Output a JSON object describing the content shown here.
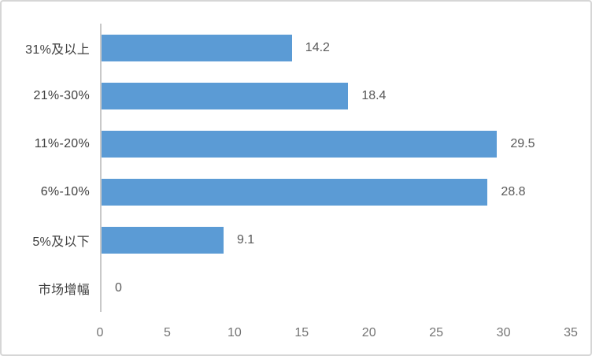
{
  "chart_data": {
    "type": "bar",
    "orientation": "horizontal",
    "title": "",
    "xlabel": "",
    "ylabel": "",
    "categories": [
      "31%及以上",
      "21%-30%",
      "11%-20%",
      "6%-10%",
      "5%及以下",
      "市场增幅"
    ],
    "values": [
      14.2,
      18.4,
      29.5,
      28.8,
      9.1,
      0
    ],
    "value_labels": [
      "14.2",
      "18.4",
      "29.5",
      "28.8",
      "9.1",
      "0"
    ],
    "x_ticks": [
      0,
      5,
      10,
      15,
      20,
      25,
      30,
      35
    ],
    "xlim": [
      0,
      35
    ],
    "grid": false,
    "legend": false,
    "colors": {
      "bar": "#5b9bd5",
      "axis_line": "#c9c9c9",
      "category_label": "#404040",
      "value_label": "#595959",
      "tick_label": "#737373",
      "frame_border": "#d6d6d6",
      "background": "#ffffff"
    }
  }
}
